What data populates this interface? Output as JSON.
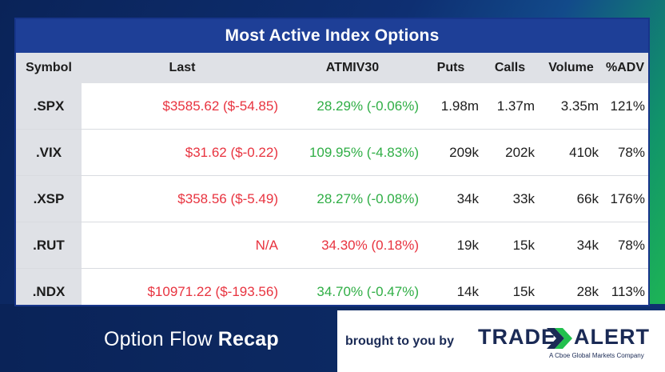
{
  "title": "Most Active Index Options",
  "columns": [
    "Symbol",
    "Last",
    "ATMIV30",
    "Puts",
    "Calls",
    "Volume",
    "%ADV"
  ],
  "rows": [
    {
      "symbol": ".SPX",
      "last": "$3585.62 ($-54.85)",
      "atmiv30": "28.29% (-0.06%)",
      "puts": "1.98m",
      "calls": "1.37m",
      "volume": "3.35m",
      "adv": "121%",
      "last_color": "#e8333f",
      "iv_color": "#2fae45"
    },
    {
      "symbol": ".VIX",
      "last": "$31.62 ($-0.22)",
      "atmiv30": "109.95% (-4.83%)",
      "puts": "209k",
      "calls": "202k",
      "volume": "410k",
      "adv": "78%",
      "last_color": "#e8333f",
      "iv_color": "#2fae45"
    },
    {
      "symbol": ".XSP",
      "last": "$358.56 ($-5.49)",
      "atmiv30": "28.27% (-0.08%)",
      "puts": "34k",
      "calls": "33k",
      "volume": "66k",
      "adv": "176%",
      "last_color": "#e8333f",
      "iv_color": "#2fae45"
    },
    {
      "symbol": ".RUT",
      "last": "N/A",
      "atmiv30": "34.30% (0.18%)",
      "puts": "19k",
      "calls": "15k",
      "volume": "34k",
      "adv": "78%",
      "last_color": "#e8333f",
      "iv_color": "#e8333f"
    },
    {
      "symbol": ".NDX",
      "last": "$10971.22 ($-193.56)",
      "atmiv30": "34.70% (-0.47%)",
      "puts": "14k",
      "calls": "15k",
      "volume": "28k",
      "adv": "113%",
      "last_color": "#e8333f",
      "iv_color": "#2fae45"
    }
  ],
  "footer": {
    "brand_light": "Option Flow",
    "brand_bold": "Recap",
    "brought_by": "brought to you by",
    "logo_left": "TRADE",
    "logo_right": "ALERT",
    "logo_tagline": "A Cboe Global Markets Company",
    "logo_icon": "chevron-arrow-icon"
  },
  "colors": {
    "title_bar": "#1e3f97",
    "header_bg": "#dfe1e6",
    "negative": "#e8333f",
    "positive": "#2fae45",
    "brand_navy": "#1a2a55",
    "accent_green": "#22c04e"
  }
}
